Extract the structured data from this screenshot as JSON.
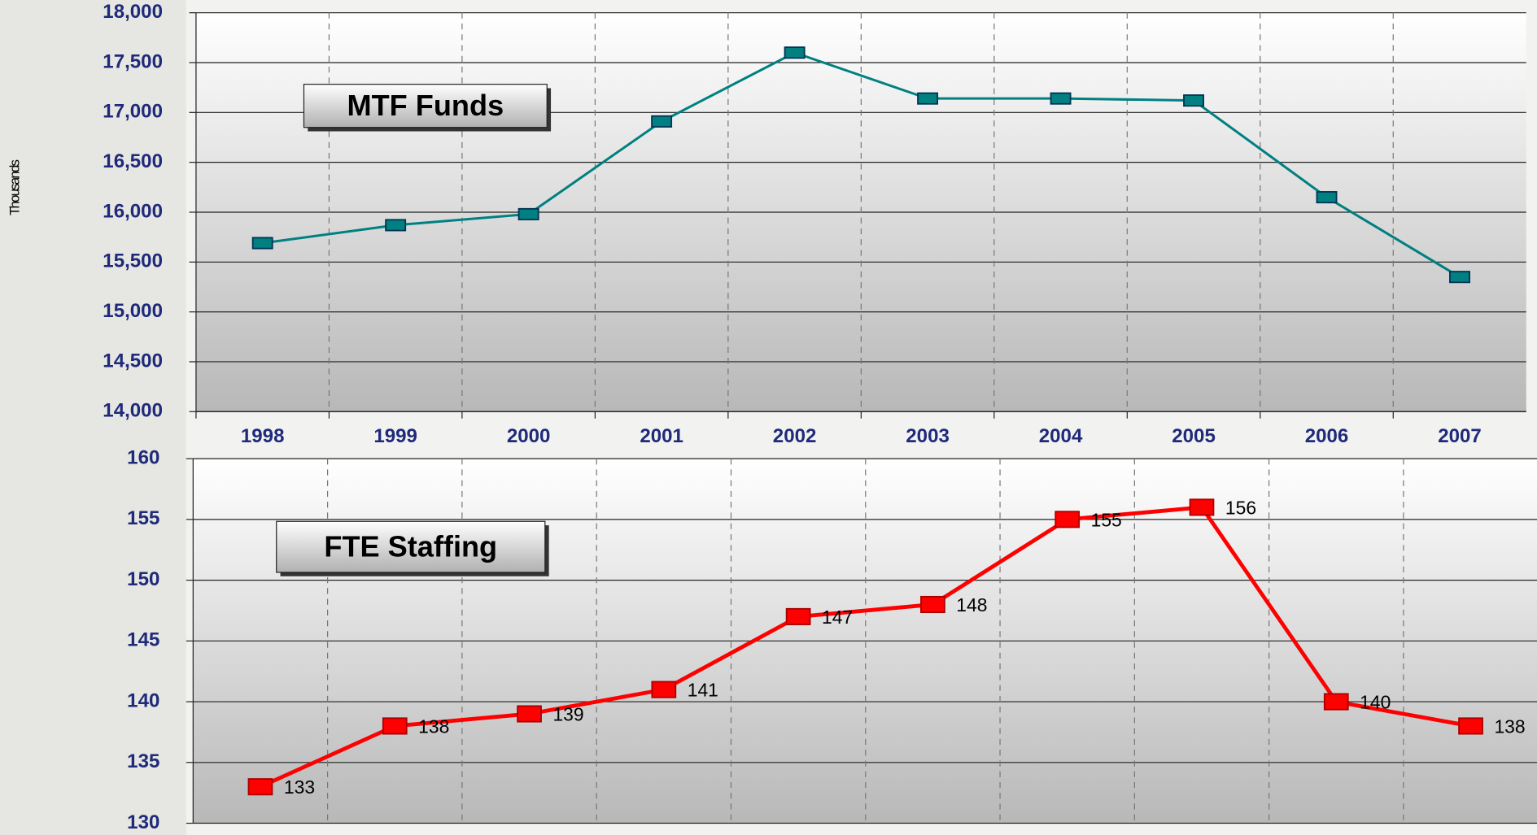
{
  "chart_data": [
    {
      "type": "line",
      "title": "MTF Funds",
      "y_label": "Thousands",
      "categories": [
        "1998",
        "1999",
        "2000",
        "2001",
        "2002",
        "2003",
        "2004",
        "2005",
        "2006",
        "2007"
      ],
      "series": [
        {
          "name": "MTF Funds",
          "color": "#008080",
          "values": [
            15690,
            15870,
            15980,
            16910,
            17600,
            17140,
            17140,
            17120,
            16150,
            15350
          ]
        }
      ],
      "ylim": [
        14000,
        18000
      ],
      "yticks": [
        {
          "value": 14000,
          "label": "14,000"
        },
        {
          "value": 14500,
          "label": "14,500"
        },
        {
          "value": 15000,
          "label": "15,000"
        },
        {
          "value": 15500,
          "label": "15,500"
        },
        {
          "value": 16000,
          "label": "16,000"
        },
        {
          "value": 16500,
          "label": "16,500"
        },
        {
          "value": 17000,
          "label": "17,000"
        },
        {
          "value": 17500,
          "label": "17,500"
        },
        {
          "value": 18000,
          "label": "18,000"
        }
      ],
      "grid": true
    },
    {
      "type": "line",
      "title": "FTE Staffing",
      "series": [
        {
          "name": "FTE Staffing",
          "color": "#ff0000",
          "values": [
            133,
            138,
            139,
            141,
            147,
            148,
            155,
            156,
            140,
            138
          ]
        }
      ],
      "ylim": [
        130,
        160
      ],
      "yticks": [
        130,
        135,
        140,
        145,
        150,
        155,
        160
      ],
      "grid": true,
      "data_labels": true
    }
  ]
}
